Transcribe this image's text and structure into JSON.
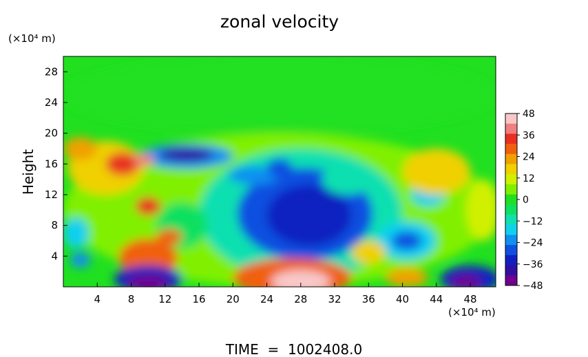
{
  "chart_data": {
    "type": "heatmap",
    "title": "zonal velocity",
    "ylabel": "Height",
    "y_unit": "(×10⁴ m)",
    "x_unit": "(×10⁴ m)",
    "footer": "TIME  =  1002408.0",
    "xlim": [
      0,
      51
    ],
    "ylim": [
      0,
      30
    ],
    "x_ticks": [
      4,
      8,
      12,
      16,
      20,
      24,
      28,
      32,
      36,
      40,
      44,
      48
    ],
    "y_ticks": [
      4,
      8,
      12,
      16,
      20,
      24,
      28
    ],
    "colorbar": {
      "range": [
        -48,
        48
      ],
      "ticks": [
        48,
        36,
        24,
        12,
        0,
        -12,
        -24,
        -36,
        -48
      ],
      "colors": [
        "#f8c8c8",
        "#f08080",
        "#e83020",
        "#f06010",
        "#f0a000",
        "#f0d000",
        "#d0f000",
        "#80f000",
        "#20e020",
        "#10e060",
        "#10e0b0",
        "#10d0f0",
        "#1090f0",
        "#1050e0",
        "#1020c0",
        "#3010a0",
        "#700090"
      ]
    },
    "background_value": 0,
    "fields": [
      {
        "x": 25.5,
        "y": 25,
        "rx": 25.5,
        "ry": 5,
        "value": 1
      },
      {
        "x": 25.5,
        "y": 10,
        "rx": 25.5,
        "ry": 10,
        "value": 4
      },
      {
        "x": 28,
        "y": 9.5,
        "rx": 12,
        "ry": 8.5,
        "value": -12
      },
      {
        "x": 28.5,
        "y": 9.5,
        "rx": 8,
        "ry": 6,
        "value": -28
      },
      {
        "x": 29,
        "y": 9.3,
        "rx": 5,
        "ry": 4,
        "value": -38
      },
      {
        "x": 14.5,
        "y": 17,
        "rx": 5.5,
        "ry": 1.6,
        "value": -26
      },
      {
        "x": 14.5,
        "y": 17.2,
        "rx": 3.2,
        "ry": 0.9,
        "value": -40
      },
      {
        "x": 22.5,
        "y": 14.5,
        "rx": 3,
        "ry": 1.2,
        "value": -24
      },
      {
        "x": 25.5,
        "y": 15.5,
        "rx": 1.5,
        "ry": 1.2,
        "value": -28
      },
      {
        "x": 5,
        "y": 15.5,
        "rx": 4.5,
        "ry": 3.5,
        "value": 20
      },
      {
        "x": 7,
        "y": 16,
        "rx": 2,
        "ry": 1.5,
        "value": 34
      },
      {
        "x": 9.5,
        "y": 16.5,
        "rx": 1.2,
        "ry": 0.8,
        "value": 44
      },
      {
        "x": 2,
        "y": 18,
        "rx": 2,
        "ry": 1.5,
        "value": 24
      },
      {
        "x": 10,
        "y": 10.5,
        "rx": 1.5,
        "ry": 1.2,
        "value": 38
      },
      {
        "x": 10,
        "y": 3.8,
        "rx": 3.5,
        "ry": 2.5,
        "value": 30
      },
      {
        "x": 10,
        "y": 1,
        "rx": 4,
        "ry": 1.8,
        "value": -36
      },
      {
        "x": 10,
        "y": 0.5,
        "rx": 2.5,
        "ry": 1,
        "value": -48
      },
      {
        "x": 27,
        "y": 1.2,
        "rx": 7,
        "ry": 2.5,
        "value": 30
      },
      {
        "x": 28,
        "y": 0.7,
        "rx": 3.5,
        "ry": 1.5,
        "value": 46
      },
      {
        "x": 40.5,
        "y": 6,
        "rx": 3.5,
        "ry": 2.5,
        "value": -18
      },
      {
        "x": 40.5,
        "y": 6,
        "rx": 1.8,
        "ry": 1.2,
        "value": -28
      },
      {
        "x": 48,
        "y": 1,
        "rx": 3.5,
        "ry": 1.8,
        "value": -34
      },
      {
        "x": 47.5,
        "y": 0.6,
        "rx": 1.8,
        "ry": 0.9,
        "value": -48
      },
      {
        "x": 1.5,
        "y": 7,
        "rx": 1.5,
        "ry": 2,
        "value": -20
      },
      {
        "x": 2,
        "y": 3.5,
        "rx": 1.2,
        "ry": 1,
        "value": -22
      },
      {
        "x": 43,
        "y": 12,
        "rx": 2,
        "ry": 1.5,
        "value": -16
      },
      {
        "x": 40.5,
        "y": 1.2,
        "rx": 2.5,
        "ry": 1.2,
        "value": 26
      },
      {
        "x": 44,
        "y": 15,
        "rx": 4,
        "ry": 3,
        "value": 16
      },
      {
        "x": 49.5,
        "y": 10,
        "rx": 2,
        "ry": 4,
        "value": 14
      },
      {
        "x": 33.5,
        "y": 14,
        "rx": 3,
        "ry": 2,
        "value": -10
      },
      {
        "x": 14,
        "y": 8,
        "rx": 3,
        "ry": 3,
        "value": -8
      },
      {
        "x": 12.5,
        "y": 6.5,
        "rx": 1.5,
        "ry": 1,
        "value": 30
      },
      {
        "x": 36,
        "y": 4.5,
        "rx": 2,
        "ry": 1.5,
        "value": 20
      }
    ]
  }
}
